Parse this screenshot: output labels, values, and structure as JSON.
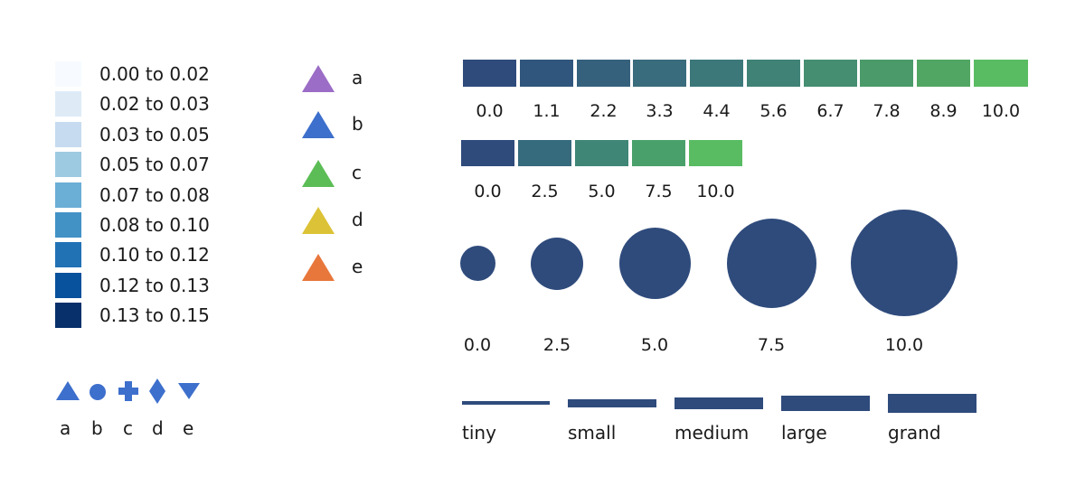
{
  "sequential_legend": {
    "items": [
      {
        "label": "0.00 to 0.02",
        "color": "#f7fbff"
      },
      {
        "label": "0.02 to 0.03",
        "color": "#deebf7"
      },
      {
        "label": "0.03 to 0.05",
        "color": "#c6dbef"
      },
      {
        "label": "0.05 to 0.07",
        "color": "#9ecae1"
      },
      {
        "label": "0.07 to 0.08",
        "color": "#6baed6"
      },
      {
        "label": "0.08 to 0.10",
        "color": "#4292c6"
      },
      {
        "label": "0.10 to 0.12",
        "color": "#2171b5"
      },
      {
        "label": "0.12 to 0.13",
        "color": "#08519c"
      },
      {
        "label": "0.13 to 0.15",
        "color": "#08306b"
      }
    ]
  },
  "categorical_legend": {
    "items": [
      {
        "label": "a",
        "color": "#9b6dc6",
        "icon": "triangle-icon"
      },
      {
        "label": "b",
        "color": "#3d6fcc",
        "icon": "triangle-icon"
      },
      {
        "label": "c",
        "color": "#5cbd57",
        "icon": "triangle-icon"
      },
      {
        "label": "d",
        "color": "#dcc236",
        "icon": "triangle-icon"
      },
      {
        "label": "e",
        "color": "#e8773c",
        "icon": "triangle-icon"
      }
    ]
  },
  "symbol_legend": {
    "color": "#3d6fcc",
    "items": [
      {
        "label": "a",
        "icon": "triangle-up-icon"
      },
      {
        "label": "b",
        "icon": "circle-icon"
      },
      {
        "label": "c",
        "icon": "plus-icon"
      },
      {
        "label": "d",
        "icon": "diamond-icon"
      },
      {
        "label": "e",
        "icon": "triangle-down-icon"
      }
    ]
  },
  "color_scale_10": {
    "labels": [
      "0.0",
      "1.1",
      "2.2",
      "3.3",
      "4.4",
      "5.6",
      "6.7",
      "7.8",
      "8.9",
      "10.0"
    ],
    "colors": [
      "#2f4b7c",
      "#31567d",
      "#35617d",
      "#396c7c",
      "#3c777a",
      "#408276",
      "#458e71",
      "#4b9a6a",
      "#52a663",
      "#59bc62"
    ]
  },
  "color_scale_5": {
    "labels": [
      "0.0",
      "2.5",
      "5.0",
      "7.5",
      "10.0"
    ],
    "colors": [
      "#2f4b7c",
      "#366a7d",
      "#3f8677",
      "#4aa06a",
      "#59bc62"
    ]
  },
  "size_legend": {
    "color": "#2f4b7c",
    "labels": [
      "0.0",
      "2.5",
      "5.0",
      "7.5",
      "10.0"
    ],
    "values": [
      0.0,
      2.5,
      5.0,
      7.5,
      10.0
    ]
  },
  "line_width_legend": {
    "color": "#2f4b7c",
    "items": [
      {
        "label": "tiny",
        "weight": 1
      },
      {
        "label": "small",
        "weight": 2
      },
      {
        "label": "medium",
        "weight": 3
      },
      {
        "label": "large",
        "weight": 4
      },
      {
        "label": "grand",
        "weight": 5
      }
    ]
  }
}
